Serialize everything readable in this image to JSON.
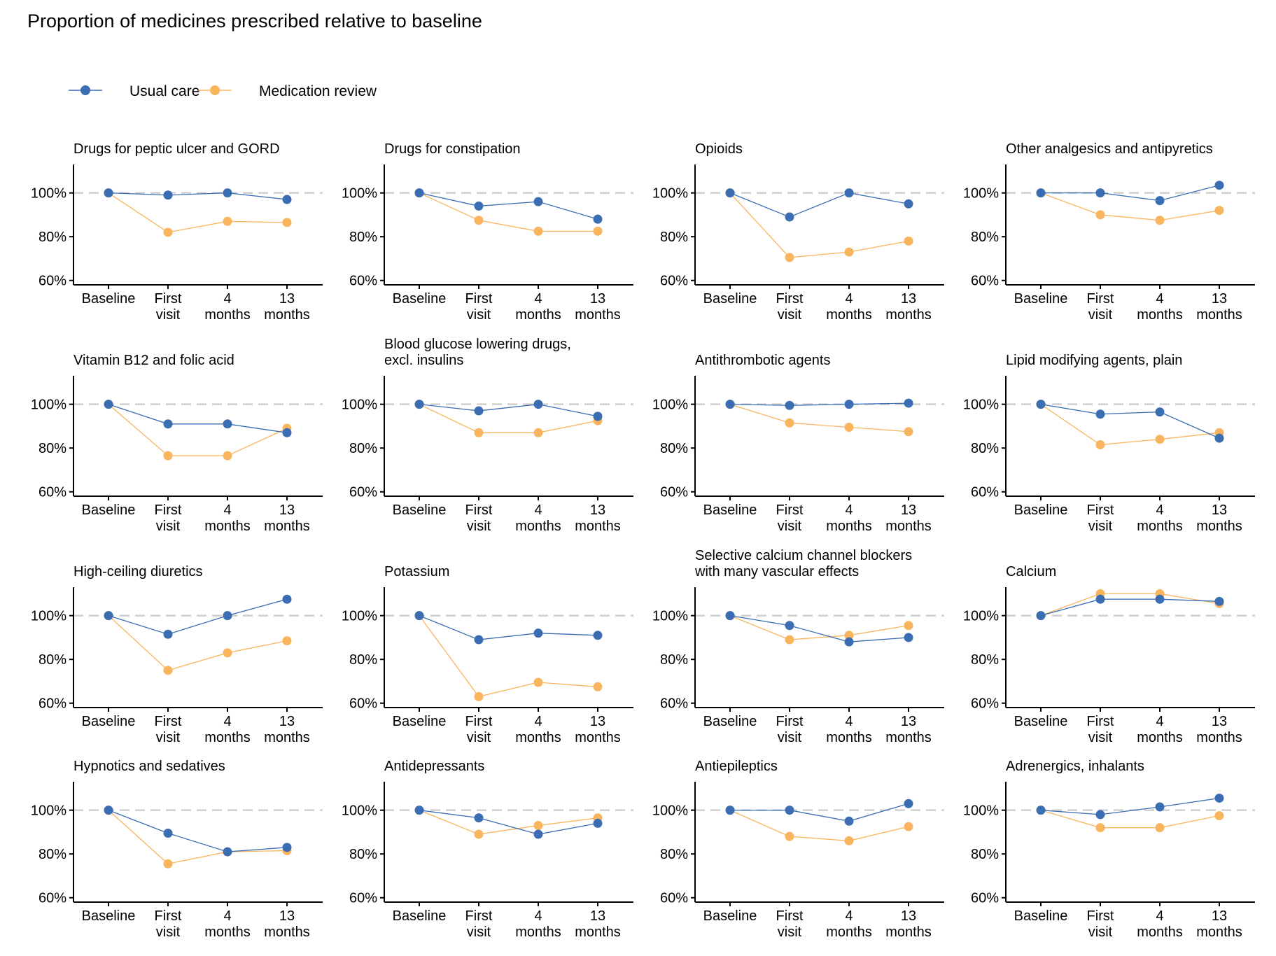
{
  "title": "Proportion of medicines prescribed relative to baseline",
  "colors": {
    "usual_care": "#3b6db3",
    "medication_review": "#f9b55d",
    "reference_line": "#cfcfcf"
  },
  "legend": [
    {
      "label": "Usual care",
      "color": "#3b6db3"
    },
    {
      "label": "Medication review",
      "color": "#f9b55d"
    }
  ],
  "chart_data": {
    "type": "line",
    "categories": [
      [
        "Baseline"
      ],
      [
        "First",
        "visit"
      ],
      [
        "4",
        "months"
      ],
      [
        "13",
        "months"
      ]
    ],
    "y_ticks": [
      "60%",
      "80%",
      "100%"
    ],
    "ylim": [
      58,
      113
    ],
    "reference_value": 100,
    "grid": false,
    "legend_position": "top-left",
    "panels": [
      {
        "title": [
          "Drugs for peptic ulcer and GORD"
        ],
        "series": [
          {
            "name": "Usual care",
            "values": [
              100,
              99,
              100,
              97
            ]
          },
          {
            "name": "Medication review",
            "values": [
              100,
              82,
              87,
              86.5
            ]
          }
        ]
      },
      {
        "title": [
          "Drugs for constipation"
        ],
        "series": [
          {
            "name": "Usual care",
            "values": [
              100,
              94,
              96,
              88
            ]
          },
          {
            "name": "Medication review",
            "values": [
              100,
              87.5,
              82.5,
              82.5
            ]
          }
        ]
      },
      {
        "title": [
          "Opioids"
        ],
        "series": [
          {
            "name": "Usual care",
            "values": [
              100,
              89,
              100,
              95
            ]
          },
          {
            "name": "Medication review",
            "values": [
              100,
              70.5,
              73,
              78
            ]
          }
        ]
      },
      {
        "title": [
          "Other analgesics and antipyretics"
        ],
        "series": [
          {
            "name": "Usual care",
            "values": [
              100,
              100,
              96.5,
              103.5
            ]
          },
          {
            "name": "Medication review",
            "values": [
              100,
              90,
              87.5,
              92
            ]
          }
        ]
      },
      {
        "title": [
          "Vitamin B12 and folic acid"
        ],
        "series": [
          {
            "name": "Usual care",
            "values": [
              100,
              91,
              91,
              87
            ]
          },
          {
            "name": "Medication review",
            "values": [
              100,
              76.5,
              76.5,
              89
            ]
          }
        ]
      },
      {
        "title": [
          "Blood glucose lowering drugs,",
          "excl. insulins"
        ],
        "series": [
          {
            "name": "Usual care",
            "values": [
              100,
              97,
              100,
              94.5
            ]
          },
          {
            "name": "Medication review",
            "values": [
              100,
              87,
              87,
              92.5
            ]
          }
        ]
      },
      {
        "title": [
          "Antithrombotic agents"
        ],
        "series": [
          {
            "name": "Usual care",
            "values": [
              100,
              99.5,
              100,
              100.5
            ]
          },
          {
            "name": "Medication review",
            "values": [
              100,
              91.5,
              89.5,
              87.5
            ]
          }
        ]
      },
      {
        "title": [
          "Lipid modifying agents, plain"
        ],
        "series": [
          {
            "name": "Usual care",
            "values": [
              100,
              95.5,
              96.5,
              84.5
            ]
          },
          {
            "name": "Medication review",
            "values": [
              100,
              81.5,
              84,
              87
            ]
          }
        ]
      },
      {
        "title": [
          "High-ceiling diuretics"
        ],
        "series": [
          {
            "name": "Usual care",
            "values": [
              100,
              91.5,
              100,
              107.5
            ]
          },
          {
            "name": "Medication review",
            "values": [
              100,
              75,
              83,
              88.5
            ]
          }
        ]
      },
      {
        "title": [
          "Potassium"
        ],
        "series": [
          {
            "name": "Usual care",
            "values": [
              100,
              89,
              92,
              91
            ]
          },
          {
            "name": "Medication review",
            "values": [
              100,
              63,
              69.5,
              67.5
            ]
          }
        ]
      },
      {
        "title": [
          "Selective calcium channel blockers",
          "with many vascular effects"
        ],
        "series": [
          {
            "name": "Usual care",
            "values": [
              100,
              95.5,
              88,
              90
            ]
          },
          {
            "name": "Medication review",
            "values": [
              100,
              89,
              91,
              95.5
            ]
          }
        ]
      },
      {
        "title": [
          "Calcium"
        ],
        "series": [
          {
            "name": "Usual care",
            "values": [
              100,
              107.5,
              107.5,
              106.5
            ]
          },
          {
            "name": "Medication review",
            "values": [
              100,
              110,
              110,
              105.5
            ]
          }
        ]
      },
      {
        "title": [
          "Hypnotics and sedatives"
        ],
        "series": [
          {
            "name": "Usual care",
            "values": [
              100,
              89.5,
              81,
              83
            ]
          },
          {
            "name": "Medication review",
            "values": [
              100,
              75.5,
              81,
              81.5
            ]
          }
        ]
      },
      {
        "title": [
          "Antidepressants"
        ],
        "series": [
          {
            "name": "Usual care",
            "values": [
              100,
              96.5,
              89,
              94
            ]
          },
          {
            "name": "Medication review",
            "values": [
              100,
              89,
              93,
              96.5
            ]
          }
        ]
      },
      {
        "title": [
          "Antiepileptics"
        ],
        "series": [
          {
            "name": "Usual care",
            "values": [
              100,
              100,
              95,
              103
            ]
          },
          {
            "name": "Medication review",
            "values": [
              100,
              88,
              86,
              92.5
            ]
          }
        ]
      },
      {
        "title": [
          "Adrenergics, inhalants"
        ],
        "series": [
          {
            "name": "Usual care",
            "values": [
              100,
              98,
              101.5,
              105.5
            ]
          },
          {
            "name": "Medication review",
            "values": [
              100,
              92,
              92,
              97.5
            ]
          }
        ]
      }
    ]
  }
}
